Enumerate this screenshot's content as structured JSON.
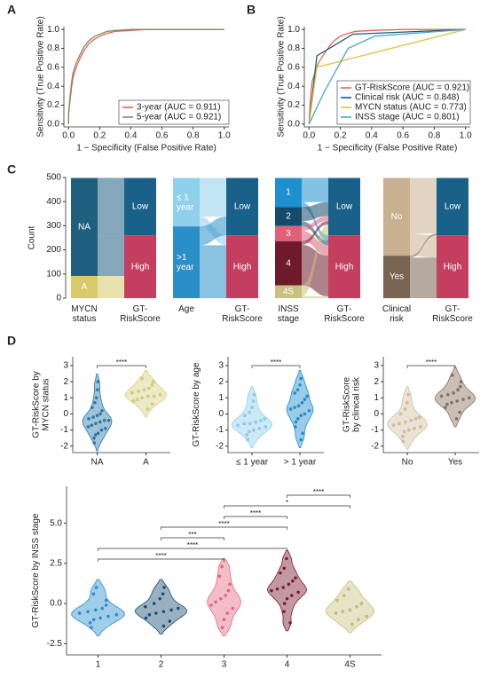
{
  "chart_data": [
    {
      "type": "line",
      "panel": "A",
      "xlabel": "1 − Specificity (False Positive Rate)",
      "ylabel": "Sensitivity (True Positive Rate)",
      "xlim": [
        -0.03,
        1.03
      ],
      "ylim": [
        -0.03,
        1.03
      ],
      "xticks": [
        {
          "value": 0,
          "label": "0.0"
        },
        0.2,
        0.4,
        0.6,
        0.8,
        {
          "value": 1,
          "label": "1.0"
        }
      ],
      "yticks": [
        {
          "value": 0,
          "label": "0.0"
        },
        0.2,
        0.4,
        0.6,
        0.8,
        {
          "value": 1,
          "label": "1.0"
        }
      ],
      "legend": "lower right",
      "x": [
        0,
        0,
        0.01,
        0.02,
        0.03,
        0.05,
        0.07,
        0.1,
        0.13,
        0.17,
        0.2,
        0.25,
        0.3,
        0.4,
        0.5,
        0.6,
        0.8,
        1
      ],
      "series": [
        {
          "name": "3-year (AUC = 0.911)",
          "color": "#e8664f",
          "values": [
            0,
            0.1,
            0.25,
            0.4,
            0.5,
            0.6,
            0.68,
            0.78,
            0.85,
            0.9,
            0.93,
            0.96,
            0.98,
            0.99,
            1,
            1,
            1,
            1
          ]
        },
        {
          "name": "5-year (AUC = 0.921)",
          "color": "#7d8c6c",
          "values": [
            0,
            0.12,
            0.3,
            0.45,
            0.55,
            0.65,
            0.72,
            0.82,
            0.88,
            0.93,
            0.95,
            0.98,
            0.99,
            1,
            1,
            1,
            1,
            1
          ]
        }
      ]
    },
    {
      "type": "line",
      "panel": "B",
      "xlabel": "1 − Specificity (False Positive Rate)",
      "ylabel": "Sensitivity (True Positive Rate)",
      "xlim": [
        -0.03,
        1.03
      ],
      "ylim": [
        -0.03,
        1.03
      ],
      "xticks": [
        {
          "value": 0,
          "label": "0.0"
        },
        0.2,
        0.4,
        0.6,
        0.8,
        {
          "value": 1,
          "label": "1.0"
        }
      ],
      "yticks": [
        {
          "value": 0,
          "label": "0.0"
        },
        0.2,
        0.4,
        0.6,
        0.8,
        {
          "value": 1,
          "label": "1.0"
        }
      ],
      "legend": "lower right",
      "series": [
        {
          "name": "GT-RiskScore (AUC = 0.921)",
          "color": "#e8664f",
          "x": [
            0,
            0.01,
            0.02,
            0.04,
            0.06,
            0.08,
            0.1,
            0.13,
            0.16,
            0.2,
            0.25,
            0.3,
            0.4,
            0.6,
            1
          ],
          "values": [
            0,
            0.3,
            0.45,
            0.55,
            0.65,
            0.7,
            0.75,
            0.82,
            0.88,
            0.93,
            0.96,
            0.98,
            0.99,
            1,
            1
          ]
        },
        {
          "name": "Clinical risk (AUC = 0.848)",
          "color": "#1b5c7a",
          "x": [
            0,
            0.05,
            0.28,
            1
          ],
          "values": [
            0,
            0.72,
            0.95,
            1
          ]
        },
        {
          "name": "MYCN status (AUC = 0.773)",
          "color": "#d9c24a",
          "x": [
            0,
            0.05,
            1
          ],
          "values": [
            0,
            0.6,
            1
          ]
        },
        {
          "name": "INSS stage (AUC = 0.801)",
          "color": "#4aa6cc",
          "x": [
            0,
            0.1,
            0.25,
            0.42,
            1
          ],
          "values": [
            0,
            0.35,
            0.8,
            0.93,
            1
          ]
        }
      ]
    },
    {
      "type": "alluvial",
      "panel": "C",
      "ylabel": "Count",
      "ylim": [
        0,
        500
      ],
      "yticks": [
        0,
        100,
        200,
        300,
        400,
        500
      ],
      "target": {
        "label": [
          "GT-",
          "RiskScore"
        ],
        "categories": [
          "Low",
          "High"
        ],
        "colors": [
          "#1a6189",
          "#c43f5f"
        ]
      },
      "plots": [
        {
          "label": [
            "MYCN",
            "status"
          ],
          "categories": [
            "NA",
            "A"
          ],
          "colors": [
            "#1f5f80",
            "#d8ca6a"
          ],
          "flows": [
            [
              238,
              168
            ],
            [
              0,
              92
            ]
          ]
        },
        {
          "label": [
            "Age"
          ],
          "categories": [
            [
              "≤ 1",
              "year"
            ],
            [
              ">1",
              "year"
            ]
          ],
          "colors": [
            "#8fd0ec",
            "#2a8fc8"
          ],
          "flows": [
            [
              160,
              41
            ],
            [
              78,
              219
            ]
          ]
        },
        {
          "label": [
            "INSS",
            "stage"
          ],
          "categories": [
            "1",
            "2",
            "3",
            "4",
            "4S"
          ],
          "colors": [
            "#1e8fcf",
            "#144a6a",
            "#e06078",
            "#6e1a2a",
            "#c8c080"
          ],
          "flows": [
            [
              100,
              21
            ],
            [
              58,
              20
            ],
            [
              20,
              43
            ],
            [
              15,
              168
            ],
            [
              45,
              8
            ]
          ]
        },
        {
          "label": [
            "Clinical",
            "risk"
          ],
          "categories": [
            "No",
            "Yes"
          ],
          "colors": [
            "#c8b090",
            "#7a6452"
          ],
          "flows": [
            [
              230,
              92
            ],
            [
              8,
              168
            ]
          ]
        }
      ]
    },
    {
      "type": "violin",
      "panel": "D",
      "ylabel": [
        "GT-RiskScore by",
        "MYCN status"
      ],
      "ylim": [
        -2.4,
        3.55
      ],
      "yticks": [
        -2,
        -1,
        0,
        1,
        2,
        3
      ],
      "groups": [
        {
          "name": "NA",
          "color": "#2a7aa8",
          "values": [
            -1.8,
            -1.5,
            -1.3,
            -1.2,
            -1.0,
            -0.9,
            -0.8,
            -0.7,
            -0.6,
            -0.5,
            -0.4,
            -0.4,
            -0.3,
            -0.2,
            -0.1,
            0.0,
            0.2,
            0.4,
            0.7,
            1.0,
            1.5,
            2.0
          ]
        },
        {
          "name": "A",
          "color": "#d8d080",
          "values": [
            0.3,
            0.6,
            0.8,
            0.9,
            1.0,
            1.1,
            1.1,
            1.2,
            1.3,
            1.4,
            1.5,
            1.6,
            1.8,
            2.0,
            2.2
          ]
        }
      ],
      "comparisons": [
        {
          "from": "NA",
          "to": "A",
          "label": "****"
        }
      ]
    },
    {
      "type": "violin",
      "ylabel": [
        "GT-RiskScore by age"
      ],
      "ylim": [
        -2.4,
        3.55
      ],
      "yticks": [
        -2,
        -1,
        0,
        1,
        2,
        3
      ],
      "groups": [
        {
          "name": "≤ 1 year",
          "color": "#8fd0ec",
          "values": [
            -1.6,
            -1.3,
            -1.1,
            -1.0,
            -0.9,
            -0.8,
            -0.7,
            -0.6,
            -0.6,
            -0.5,
            -0.4,
            -0.3,
            -0.1,
            0.1,
            0.4,
            0.8,
            1.2
          ]
        },
        {
          "name": "> 1 year",
          "color": "#1e8fcf",
          "values": [
            -1.6,
            -1.2,
            -0.8,
            -0.5,
            -0.3,
            -0.1,
            0.0,
            0.2,
            0.3,
            0.4,
            0.5,
            0.7,
            0.9,
            1.1,
            1.3,
            1.5,
            1.8,
            2.2
          ]
        }
      ],
      "comparisons": [
        {
          "from": "≤ 1 year",
          "to": "> 1 year",
          "label": "****"
        }
      ]
    },
    {
      "type": "violin",
      "ylabel": [
        "GT-RiskScore",
        "by clinical risk"
      ],
      "ylim": [
        -2.4,
        3.55
      ],
      "yticks": [
        -2,
        -1,
        0,
        1,
        2,
        3
      ],
      "groups": [
        {
          "name": "No",
          "color": "#d4c0a0",
          "values": [
            -1.7,
            -1.4,
            -1.1,
            -1.0,
            -0.9,
            -0.8,
            -0.7,
            -0.6,
            -0.5,
            -0.4,
            -0.3,
            -0.2,
            0.0,
            0.3,
            0.7,
            1.2
          ]
        },
        {
          "name": "Yes",
          "color": "#8a7060",
          "values": [
            -0.3,
            0.1,
            0.4,
            0.6,
            0.7,
            0.8,
            0.9,
            1.0,
            1.1,
            1.2,
            1.3,
            1.5,
            1.7,
            2.0,
            2.4
          ]
        }
      ],
      "comparisons": [
        {
          "from": "No",
          "to": "Yes",
          "label": "****"
        }
      ]
    },
    {
      "type": "violin",
      "ylabel": [
        "GT-RiskScore by INSS stage"
      ],
      "ylim": [
        -3.2,
        7.3
      ],
      "yticks": [
        -2.5,
        {
          "value": 0,
          "label": "0.0"
        },
        2.5,
        {
          "value": 5,
          "label": "5.0"
        }
      ],
      "groups": [
        {
          "name": "1",
          "color": "#2a90d0",
          "values": [
            -1.5,
            -1.2,
            -1.0,
            -0.9,
            -0.8,
            -0.7,
            -0.6,
            -0.5,
            -0.4,
            -0.3,
            -0.1,
            0.2,
            0.6,
            1.0
          ]
        },
        {
          "name": "2",
          "color": "#1a5070",
          "values": [
            -1.4,
            -1.1,
            -0.9,
            -0.7,
            -0.6,
            -0.5,
            -0.4,
            -0.3,
            -0.2,
            0.0,
            0.3,
            0.6,
            1.0
          ]
        },
        {
          "name": "3",
          "color": "#e66a80",
          "values": [
            -1.5,
            -1.0,
            -0.6,
            -0.3,
            -0.1,
            0.1,
            0.3,
            0.5,
            0.8,
            1.2,
            1.7,
            2.3
          ]
        },
        {
          "name": "4",
          "color": "#7a1a30",
          "values": [
            -1.2,
            -0.5,
            0.0,
            0.3,
            0.5,
            0.7,
            0.8,
            0.9,
            1.0,
            1.2,
            1.4,
            1.6,
            1.9,
            2.2,
            2.8
          ]
        },
        {
          "name": "4S",
          "color": "#c8c080",
          "values": [
            -1.3,
            -1.0,
            -0.8,
            -0.6,
            -0.5,
            -0.4,
            -0.2,
            0.0,
            0.2,
            0.5,
            0.9
          ]
        }
      ],
      "comparisons": [
        {
          "from": "1",
          "to": "3",
          "label": "****"
        },
        {
          "from": "1",
          "to": "4",
          "label": "****"
        },
        {
          "from": "2",
          "to": "3",
          "label": "***"
        },
        {
          "from": "2",
          "to": "4",
          "label": "****"
        },
        {
          "from": "3",
          "to": "4",
          "label": "****"
        },
        {
          "from": "3",
          "to": "4S",
          "label": "*"
        },
        {
          "from": "4",
          "to": "4S",
          "label": "****"
        }
      ]
    }
  ]
}
